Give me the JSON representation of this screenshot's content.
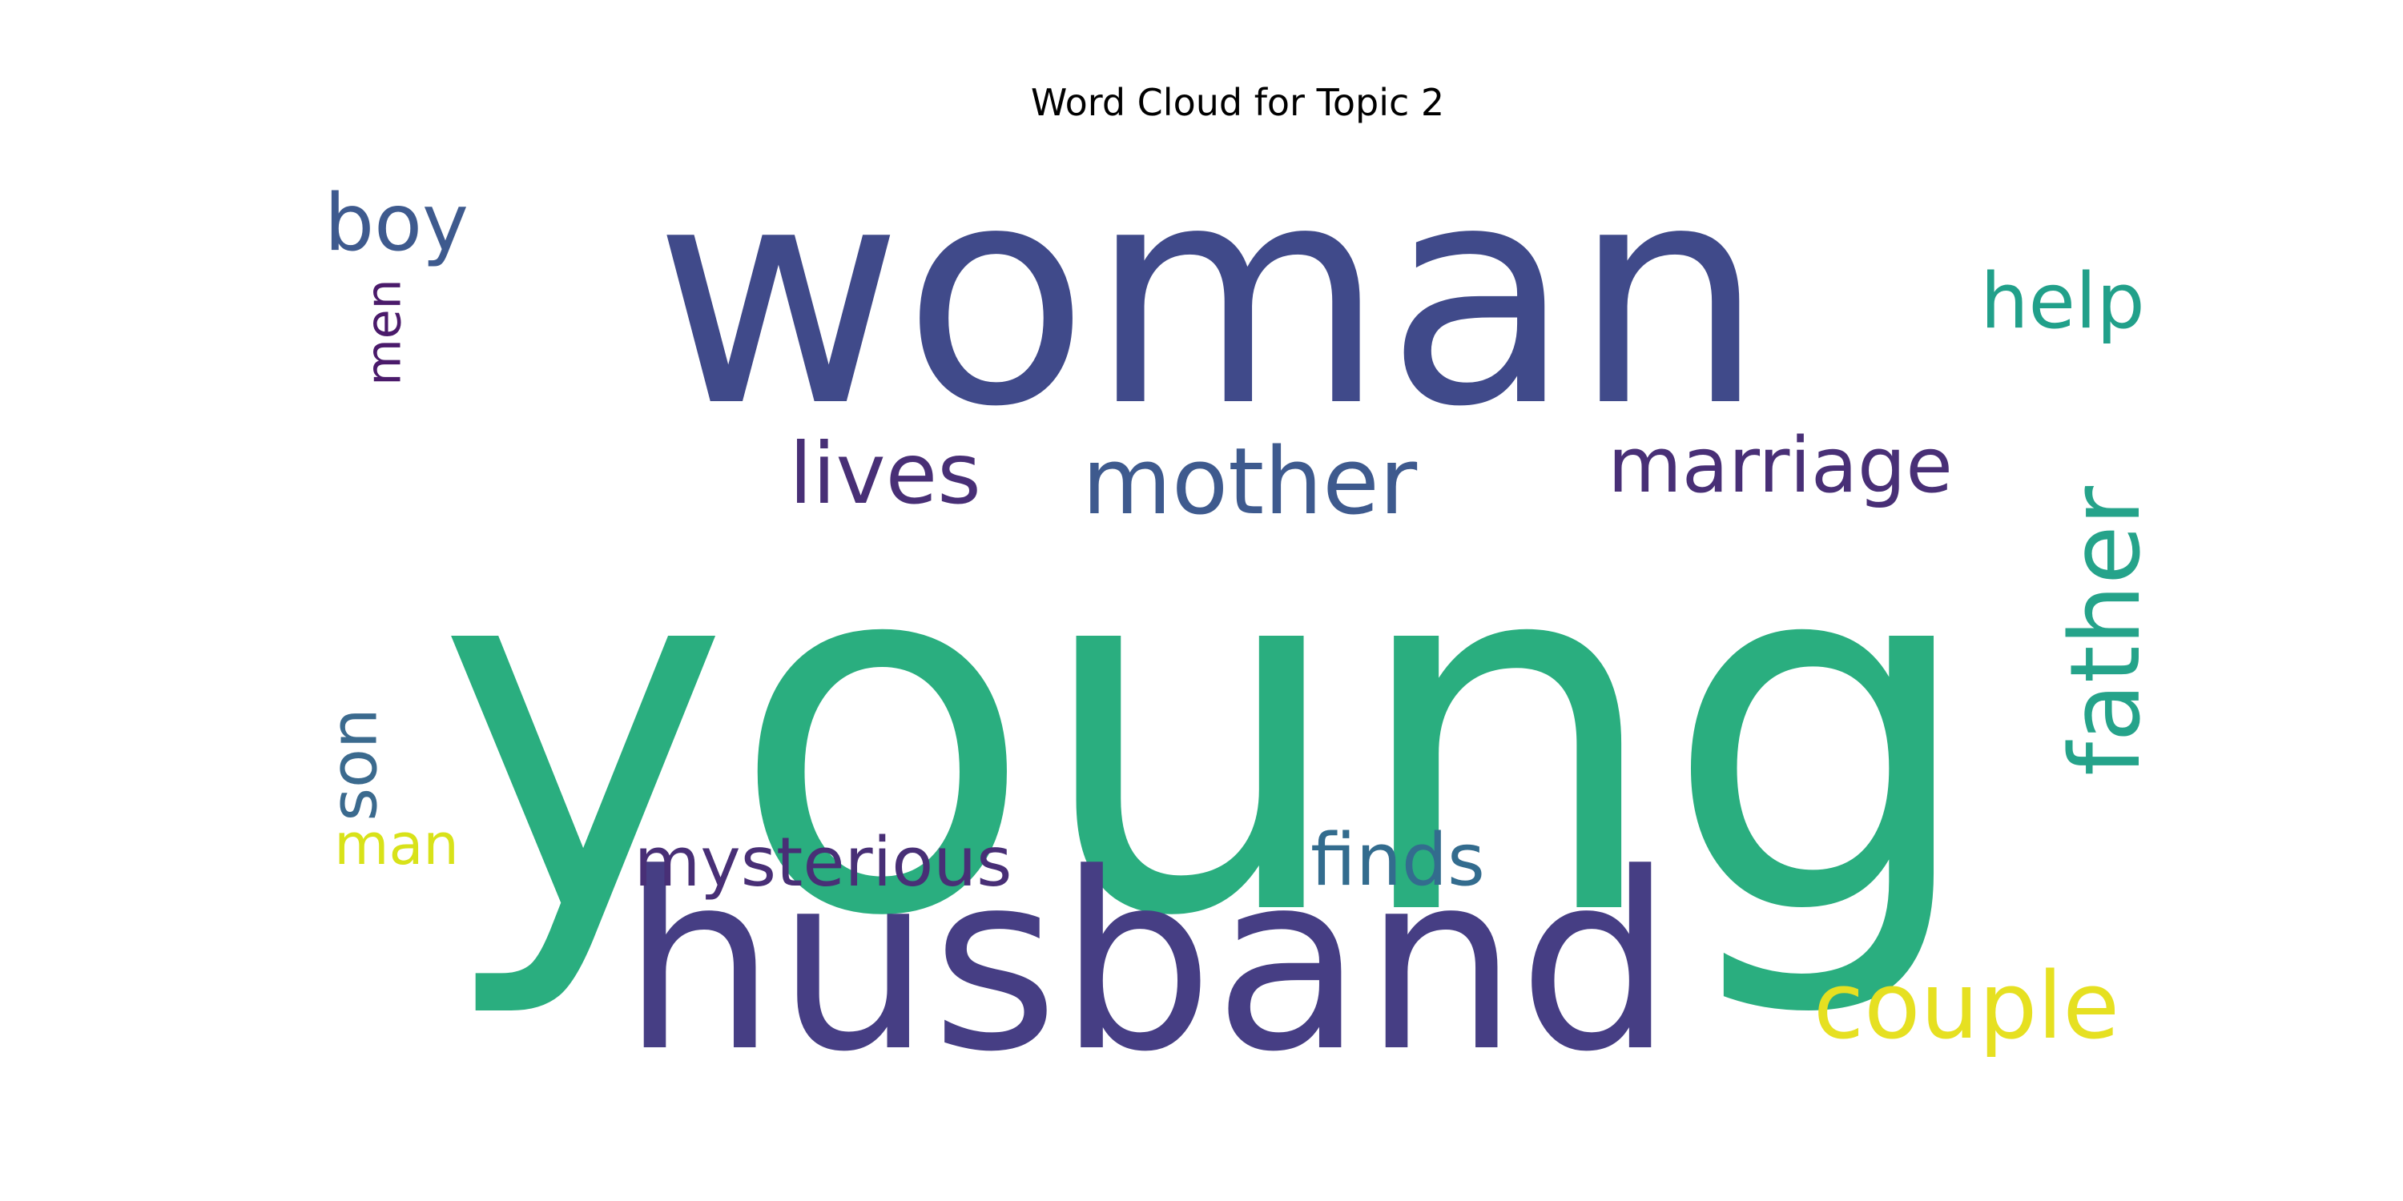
{
  "chart_data": {
    "type": "wordcloud",
    "title": "Word Cloud for Topic 2",
    "words": [
      {
        "text": "young",
        "weight": 1.0,
        "color": "#2aae7f"
      },
      {
        "text": "woman",
        "weight": 0.78,
        "color": "#404a8a"
      },
      {
        "text": "husband",
        "weight": 0.62,
        "color": "#463e84"
      },
      {
        "text": "mother",
        "weight": 0.23,
        "color": "#3e5a8e"
      },
      {
        "text": "lives",
        "weight": 0.22,
        "color": "#482f76"
      },
      {
        "text": "marriage",
        "weight": 0.19,
        "color": "#482f76"
      },
      {
        "text": "father",
        "weight": 0.19,
        "color": "#25a38a"
      },
      {
        "text": "couple",
        "weight": 0.19,
        "color": "#e6e021"
      },
      {
        "text": "mysterious",
        "weight": 0.15,
        "color": "#482f76"
      },
      {
        "text": "finds",
        "weight": 0.15,
        "color": "#336c8e"
      },
      {
        "text": "help",
        "weight": 0.15,
        "color": "#21a08a"
      },
      {
        "text": "boy",
        "weight": 0.14,
        "color": "#3e5a8e"
      },
      {
        "text": "son",
        "weight": 0.13,
        "color": "#3b6a8e"
      },
      {
        "text": "man",
        "weight": 0.12,
        "color": "#d8e219"
      },
      {
        "text": "men",
        "weight": 0.11,
        "color": "#4a1a6a"
      }
    ]
  }
}
